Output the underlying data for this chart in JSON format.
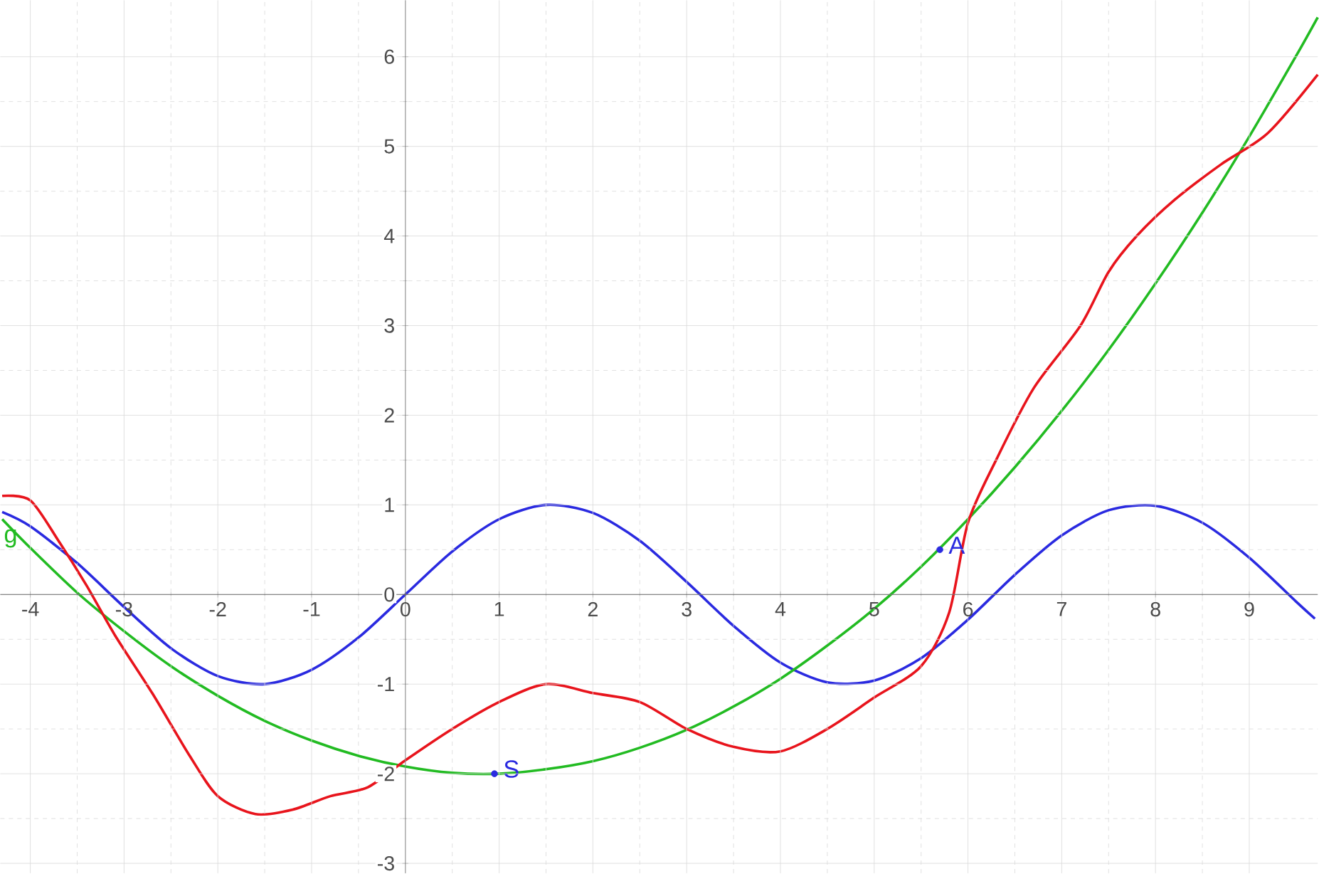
{
  "chart_data": {
    "type": "line",
    "xlim": [
      -4.32,
      9.73
    ],
    "ylim": [
      -3.11,
      6.63
    ],
    "xticks": [
      -4,
      -3,
      -2,
      -1,
      0,
      1,
      2,
      3,
      4,
      5,
      6,
      7,
      8,
      9
    ],
    "yticks": [
      -3,
      -2,
      -1,
      0,
      1,
      2,
      3,
      4,
      5,
      6
    ],
    "grid": true,
    "series": [
      {
        "color": "#2a2ae0",
        "x": [
          -4.3,
          -4,
          -3.5,
          -3,
          -2.5,
          -2,
          -1.5,
          -1,
          -0.5,
          0,
          0.5,
          1,
          1.5,
          2,
          2.5,
          3,
          3.5,
          4,
          4.5,
          5,
          5.5,
          6,
          6.5,
          7,
          7.5,
          8,
          8.5,
          9,
          9.5,
          9.7
        ],
        "values": [
          0.92,
          0.76,
          0.35,
          -0.14,
          -0.6,
          -0.91,
          -1.0,
          -0.84,
          -0.48,
          0,
          0.48,
          0.84,
          1.0,
          0.91,
          0.6,
          0.14,
          -0.35,
          -0.76,
          -0.98,
          -0.96,
          -0.71,
          -0.28,
          0.22,
          0.66,
          0.94,
          0.99,
          0.8,
          0.41,
          -0.08,
          -0.27
        ]
      },
      {
        "name": "g",
        "color": "#22bb22",
        "x": [
          -4.3,
          -4,
          -3.5,
          -3,
          -2.5,
          -2,
          -1.5,
          -1,
          -0.5,
          0,
          0.5,
          1,
          1.5,
          2,
          2.5,
          3,
          3.5,
          4,
          4.5,
          5,
          5.5,
          6,
          6.5,
          7,
          7.5,
          8,
          8.5,
          9,
          9.5,
          9.73
        ],
        "values": [
          0.84,
          0.52,
          0.02,
          -0.41,
          -0.8,
          -1.13,
          -1.41,
          -1.63,
          -1.8,
          -1.92,
          -1.99,
          -2.0,
          -1.95,
          -1.86,
          -1.71,
          -1.51,
          -1.25,
          -0.94,
          -0.57,
          -0.16,
          0.31,
          0.84,
          1.42,
          2.05,
          2.73,
          3.47,
          4.26,
          5.11,
          6.01,
          6.44
        ]
      },
      {
        "color": "#e8141c",
        "x": [
          -4.3,
          -4,
          -3.7,
          -3.4,
          -3.1,
          -2.7,
          -2.3,
          -2,
          -1.6,
          -1.2,
          -0.8,
          -0.4,
          0,
          0.5,
          1,
          1.5,
          2,
          2.5,
          3,
          3.5,
          4,
          4.5,
          5,
          5.5,
          5.8,
          6,
          6.3,
          6.7,
          7.2,
          7.5,
          7.8,
          8.2,
          8.7,
          9.2,
          9.73
        ],
        "values": [
          1.1,
          1.05,
          0.6,
          0.1,
          -0.45,
          -1.1,
          -1.8,
          -2.25,
          -2.45,
          -2.4,
          -2.25,
          -2.15,
          -1.85,
          -1.5,
          -1.2,
          -1.0,
          -1.1,
          -1.2,
          -1.5,
          -1.7,
          -1.75,
          -1.5,
          -1.15,
          -0.8,
          -0.2,
          0.8,
          1.5,
          2.3,
          3.0,
          3.6,
          4.0,
          4.4,
          4.8,
          5.15,
          5.8
        ]
      },
      {
        "type": "scatter",
        "color": "#2a2ae0",
        "x": [
          0.95,
          5.7
        ],
        "values": [
          -2,
          0.5
        ]
      }
    ],
    "annotations": [
      {
        "text": "S",
        "x": 0.95,
        "y": -2
      },
      {
        "text": "A",
        "x": 5.7,
        "y": 0.5
      }
    ]
  }
}
